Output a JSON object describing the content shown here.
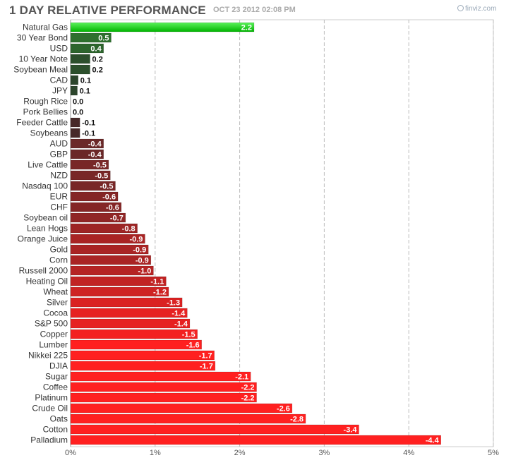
{
  "header": {
    "title": "1 DAY RELATIVE PERFORMANCE",
    "date": "OCT 23 2012 02:08 PM",
    "brand": "finviz.com"
  },
  "colors": {
    "positive_top": "#5cf25c",
    "positive_bottom": "#00b400",
    "negative_strong": "#ff2020",
    "dark": "#2a2a2a",
    "grid": "#bbbbbb"
  },
  "chart_data": {
    "type": "bar",
    "orientation": "horizontal",
    "title": "1 DAY RELATIVE PERFORMANCE",
    "xlabel": "",
    "ylabel": "",
    "xlim": [
      0,
      5
    ],
    "x_ticks": [
      "0%",
      "1%",
      "2%",
      "3%",
      "4%",
      "5%"
    ],
    "grid": true,
    "categories": [
      "Natural Gas",
      "30 Year Bond",
      "USD",
      "10 Year Note",
      "Soybean Meal",
      "CAD",
      "JPY",
      "Rough Rice",
      "Pork Bellies",
      "Feeder Cattle",
      "Soybeans",
      "AUD",
      "GBP",
      "Live Cattle",
      "NZD",
      "Nasdaq 100",
      "EUR",
      "CHF",
      "Soybean oil",
      "Lean Hogs",
      "Orange Juice",
      "Gold",
      "Corn",
      "Russell 2000",
      "Heating Oil",
      "Wheat",
      "Silver",
      "Cocoa",
      "S&P 500",
      "Copper",
      "Lumber",
      "Nikkei 225",
      "DJIA",
      "Sugar",
      "Coffee",
      "Platinum",
      "Crude Oil",
      "Oats",
      "Cotton",
      "Palladium"
    ],
    "values": [
      2.2,
      0.5,
      0.4,
      0.2,
      0.2,
      0.1,
      0.1,
      0.0,
      0.0,
      -0.1,
      -0.1,
      -0.4,
      -0.4,
      -0.5,
      -0.5,
      -0.5,
      -0.6,
      -0.6,
      -0.7,
      -0.8,
      -0.9,
      -0.9,
      -0.9,
      -1.0,
      -1.1,
      -1.2,
      -1.3,
      -1.4,
      -1.4,
      -1.5,
      -1.6,
      -1.7,
      -1.7,
      -2.1,
      -2.2,
      -2.2,
      -2.6,
      -2.8,
      -3.4,
      -4.4
    ],
    "display_magnitudes": [
      2.17,
      0.48,
      0.39,
      0.23,
      0.23,
      0.09,
      0.08,
      0.0,
      0.0,
      0.11,
      0.11,
      0.39,
      0.39,
      0.45,
      0.47,
      0.53,
      0.56,
      0.6,
      0.65,
      0.79,
      0.88,
      0.92,
      0.95,
      0.98,
      1.13,
      1.16,
      1.32,
      1.38,
      1.41,
      1.5,
      1.55,
      1.7,
      1.71,
      2.13,
      2.2,
      2.2,
      2.62,
      2.78,
      3.41,
      4.38
    ],
    "value_labels": [
      "2.2",
      "0.5",
      "0.4",
      "0.2",
      "0.2",
      "0.1",
      "0.1",
      "0.0",
      "0.0",
      "-0.1",
      "-0.1",
      "-0.4",
      "-0.4",
      "-0.5",
      "-0.5",
      "-0.5",
      "-0.6",
      "-0.6",
      "-0.7",
      "-0.8",
      "-0.9",
      "-0.9",
      "-0.9",
      "-1.0",
      "-1.1",
      "-1.2",
      "-1.3",
      "-1.4",
      "-1.4",
      "-1.5",
      "-1.6",
      "-1.7",
      "-1.7",
      "-2.1",
      "-2.2",
      "-2.2",
      "-2.6",
      "-2.8",
      "-3.4",
      "-4.4"
    ]
  }
}
